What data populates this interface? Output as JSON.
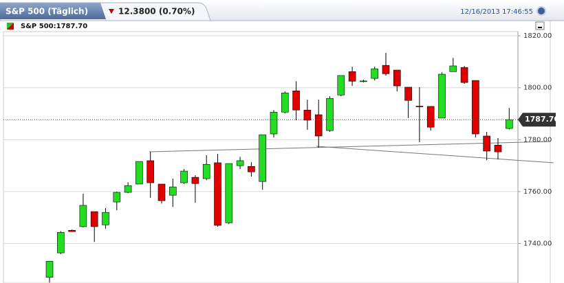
{
  "header": {
    "tab_title": "S&P 500 (Täglich)",
    "change": "12.3800 (0.70%)",
    "timestamp": "12/16/2013 17:46:55",
    "legend": "S&P 500:1787.70"
  },
  "chart_data": {
    "type": "candlestick",
    "categories": [
      null,
      null,
      null,
      null,
      null,
      null,
      null,
      null,
      null,
      null,
      null,
      null,
      null,
      null,
      null,
      null,
      null,
      null,
      null,
      null,
      null,
      null,
      null,
      null,
      null,
      null,
      null,
      null,
      null,
      null,
      null,
      null,
      null,
      null,
      null,
      null,
      null,
      null,
      null,
      null,
      null,
      null
    ],
    "open": [
      1727.0,
      1736.4,
      1745.1,
      1746.5,
      1752.3,
      1747.2,
      1756.0,
      1759.7,
      1762.9,
      1771.9,
      1762.9,
      1758.6,
      1763.4,
      1765.5,
      1765.0,
      1771.1,
      1748.0,
      1770.0,
      1769.7,
      1763.9,
      1782.2,
      1790.6,
      1798.8,
      1791.4,
      1789.6,
      1783.5,
      1797.2,
      1806.2,
      1802.5,
      1803.6,
      1808.6,
      1806.8,
      1800.2,
      1792.9,
      1792.8,
      1788.3,
      1806.2,
      1807.8,
      1802.8,
      1781.4,
      1777.9,
      1784.3
    ],
    "high": [
      1733.2,
      1744.8,
      1745.4,
      1759.2,
      1752.3,
      1753.6,
      1760.0,
      1763.6,
      1771.6,
      1775.3,
      1762.9,
      1765.0,
      1768.7,
      1766.3,
      1774.0,
      1774.5,
      1770.8,
      1773.4,
      1771.3,
      1781.9,
      1791.4,
      1798.6,
      1802.5,
      1795.4,
      1795.4,
      1796.7,
      1804.7,
      1808.1,
      1803.1,
      1808.1,
      1813.4,
      1806.8,
      1800.2,
      1800.2,
      1792.8,
      1806.0,
      1811.5,
      1808.4,
      1802.8,
      1783.0,
      1780.6,
      1792.2
    ],
    "low": [
      1725.0,
      1735.9,
      1744.6,
      1746.2,
      1740.6,
      1745.7,
      1752.8,
      1759.4,
      1762.9,
      1757.6,
      1755.4,
      1754.1,
      1762.9,
      1755.7,
      1764.4,
      1746.5,
      1747.5,
      1768.7,
      1765.8,
      1760.7,
      1780.8,
      1790.1,
      1787.5,
      1783.8,
      1776.9,
      1783.0,
      1796.7,
      1800.7,
      1802.0,
      1802.8,
      1804.7,
      1798.6,
      1788.3,
      1779.0,
      1783.5,
      1788.3,
      1806.2,
      1801.5,
      1780.8,
      1772.1,
      1772.4,
      1784.0
    ],
    "close": [
      1733.2,
      1744.3,
      1744.6,
      1754.7,
      1746.5,
      1752.0,
      1759.7,
      1762.3,
      1771.6,
      1763.4,
      1756.5,
      1761.8,
      1767.9,
      1763.1,
      1770.5,
      1747.0,
      1770.8,
      1771.9,
      1767.6,
      1781.9,
      1790.6,
      1798.0,
      1791.4,
      1787.5,
      1781.4,
      1795.9,
      1804.7,
      1802.5,
      1802.6,
      1807.3,
      1805.4,
      1800.7,
      1795.1,
      1792.7,
      1784.8,
      1805.2,
      1808.4,
      1802.0,
      1782.2,
      1775.6,
      1775.3,
      1787.7
    ],
    "last_value_label": "1787.70",
    "up_color": "#22dd22",
    "down_color": "#e00000",
    "ylim": [
      1724.8,
      1823.2
    ],
    "yticks": [
      {
        "value": 1740,
        "label": "1740.00"
      },
      {
        "value": 1760,
        "label": "1760.00"
      },
      {
        "value": 1780,
        "label": "1780.00"
      },
      {
        "value": 1800,
        "label": "1800.00"
      },
      {
        "value": 1820,
        "label": "1820.00"
      }
    ],
    "grid": true
  }
}
